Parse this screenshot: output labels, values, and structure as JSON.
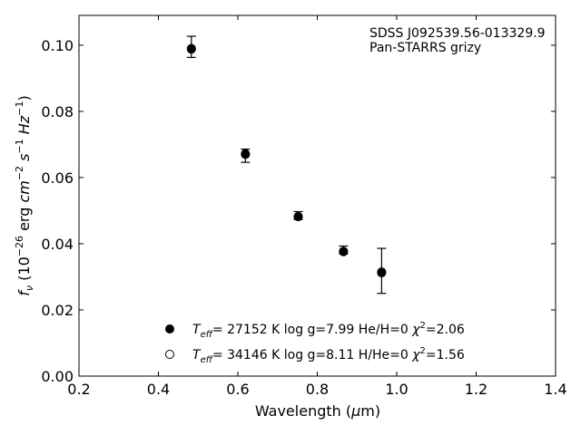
{
  "chart_data": {
    "type": "scatter",
    "annotation": [
      "SDSS J092539.56-013329.9",
      "Pan-STARRS grizy"
    ],
    "xlabel": "Wavelength (μm)",
    "ylabel": "fν (10⁻²⁶ erg cm⁻² s⁻¹ Hz⁻¹)",
    "xlim": [
      0.2,
      1.4
    ],
    "ylim": [
      0.0,
      0.109
    ],
    "xticks": [
      0.2,
      0.4,
      0.6,
      0.8,
      1.0,
      1.2,
      1.4
    ],
    "xtick_labels": [
      "0.2",
      "0.4",
      "0.6",
      "0.8",
      "1.0",
      "1.2",
      "1.4"
    ],
    "yticks": [
      0.0,
      0.02,
      0.04,
      0.06,
      0.08,
      0.1
    ],
    "ytick_labels": [
      "0.00",
      "0.02",
      "0.04",
      "0.06",
      "0.08",
      "0.10"
    ],
    "grid": false,
    "legend_position": "bottom-center",
    "observed": {
      "points": [
        {
          "x": 0.483,
          "y": 0.0995,
          "err": 0.0032
        },
        {
          "x": 0.619,
          "y": 0.0666,
          "err": 0.002
        },
        {
          "x": 0.752,
          "y": 0.0485,
          "err": 0.0012
        },
        {
          "x": 0.866,
          "y": 0.0381,
          "err": 0.0012
        },
        {
          "x": 0.962,
          "y": 0.0318,
          "err": 0.0068
        }
      ]
    },
    "series": [
      {
        "name": "Teff= 27152 K  log g=7.99  He/H=0  χ²=2.06",
        "marker": "filled",
        "values": [
          {
            "x": 0.483,
            "y": 0.099
          },
          {
            "x": 0.619,
            "y": 0.0672
          },
          {
            "x": 0.752,
            "y": 0.0482
          },
          {
            "x": 0.866,
            "y": 0.0376
          },
          {
            "x": 0.962,
            "y": 0.0312
          }
        ]
      },
      {
        "name": "Teff= 34146 K  log g=8.11  H/He=0  χ²=1.56",
        "marker": "open",
        "values": [
          {
            "x": 0.483,
            "y": 0.0988
          },
          {
            "x": 0.619,
            "y": 0.067
          },
          {
            "x": 0.752,
            "y": 0.0482
          },
          {
            "x": 0.866,
            "y": 0.0377
          },
          {
            "x": 0.962,
            "y": 0.0315
          }
        ]
      }
    ],
    "legend": [
      {
        "marker": "filled",
        "teff": "27152",
        "logg": "7.99",
        "comp": "He/H=0",
        "chi2": "2.06"
      },
      {
        "marker": "open",
        "teff": "34146",
        "logg": "8.11",
        "comp": "H/He=0",
        "chi2": "1.56"
      }
    ]
  }
}
